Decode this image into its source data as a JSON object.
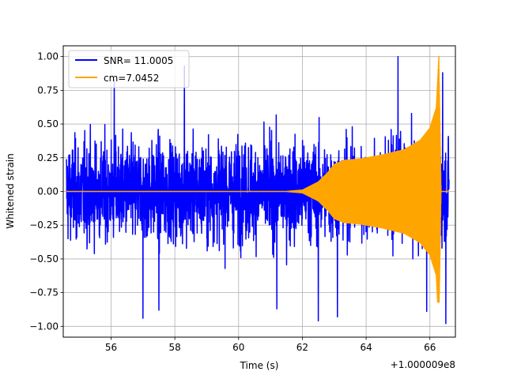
{
  "chart_data": {
    "type": "line",
    "title": "",
    "xlabel": "Time (s)",
    "ylabel": "Whitened strain",
    "x_offset_label": "+1.000009e8",
    "xlim": [
      54.5,
      66.8
    ],
    "ylim": [
      -1.08,
      1.08
    ],
    "x_ticks": [
      56,
      58,
      60,
      62,
      64,
      66
    ],
    "x_tick_labels": [
      "56",
      "58",
      "60",
      "62",
      "64",
      "66"
    ],
    "y_ticks": [
      -1.0,
      -0.75,
      -0.5,
      -0.25,
      0.0,
      0.25,
      0.5,
      0.75,
      1.0
    ],
    "y_tick_labels": [
      "−1.00",
      "−0.75",
      "−0.50",
      "−0.25",
      "0.00",
      "0.25",
      "0.50",
      "0.75",
      "1.00"
    ],
    "grid": true,
    "legend_position": "top-left",
    "series": [
      {
        "name": "SNR= 11.0005",
        "color": "#0000ff",
        "description": "whitened strain noise",
        "x_range": [
          54.6,
          66.6
        ],
        "typical_amplitude": 0.5,
        "peak_values": [
          {
            "x": 56.1,
            "y": 0.83
          },
          {
            "x": 57.0,
            "y": -0.94
          },
          {
            "x": 57.5,
            "y": -0.88
          },
          {
            "x": 58.3,
            "y": 0.93
          },
          {
            "x": 61.2,
            "y": -0.87
          },
          {
            "x": 62.5,
            "y": -0.96
          },
          {
            "x": 63.1,
            "y": -0.93
          },
          {
            "x": 65.0,
            "y": 1.0
          },
          {
            "x": 65.9,
            "y": -0.89
          },
          {
            "x": 66.4,
            "y": 0.88
          },
          {
            "x": 66.5,
            "y": -0.98
          }
        ]
      },
      {
        "name": "cm=7.0452",
        "color": "#ffa500",
        "description": "template chirp envelope",
        "envelope": {
          "x": [
            54.6,
            61.5,
            62.0,
            62.5,
            62.8,
            63.0,
            63.3,
            63.8,
            64.5,
            65.2,
            65.7,
            66.0,
            66.2,
            66.28,
            66.35,
            66.6
          ],
          "y": [
            0.0,
            0.0,
            0.01,
            0.07,
            0.14,
            0.2,
            0.23,
            0.24,
            0.27,
            0.31,
            0.38,
            0.47,
            0.62,
            1.0,
            0.0,
            0.0
          ]
        },
        "min_value": -0.82
      }
    ]
  }
}
